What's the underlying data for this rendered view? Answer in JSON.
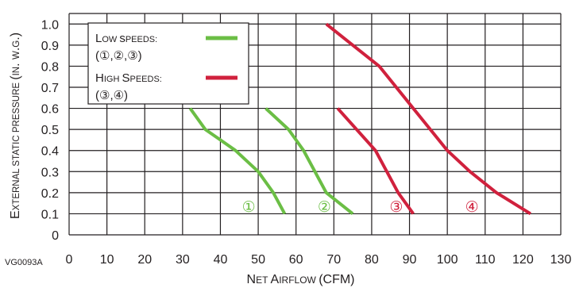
{
  "figure_code": "VG0093A",
  "colors": {
    "low": "#6bbe45",
    "high": "#d0213d",
    "grid": "#231f20"
  },
  "chart_data": {
    "type": "line",
    "xlabel": "Net Airflow (CFM)",
    "xlabel_parts": [
      {
        "t": "N",
        "big": true
      },
      {
        "t": "ET ",
        "big": false
      },
      {
        "t": "A",
        "big": true
      },
      {
        "t": "IRFLOW ",
        "big": false
      },
      {
        "t": "(CFM)",
        "big": true
      }
    ],
    "ylabel": "External static pressure (in. w.g.)",
    "ylabel_parts": [
      {
        "t": "E",
        "big": true
      },
      {
        "t": "XTERNAL STATIC PRESSURE ",
        "big": false
      },
      {
        "t": "(",
        "big": true
      },
      {
        "t": "IN",
        "big": false
      },
      {
        "t": ". ",
        "big": true
      },
      {
        "t": "W",
        "big": false
      },
      {
        "t": ".",
        "big": true
      },
      {
        "t": "G",
        "big": false
      },
      {
        "t": ".)",
        "big": true
      }
    ],
    "xlim": [
      0,
      130
    ],
    "ylim": [
      0,
      1.05
    ],
    "x_ticks": [
      "0",
      "10",
      "20",
      "30",
      "40",
      "50",
      "60",
      "70",
      "80",
      "90",
      "100",
      "110",
      "120",
      "130"
    ],
    "y_ticks": [
      "0",
      "0.1",
      "0.2",
      "0.3",
      "0.4",
      "0.5",
      "0.6",
      "0.7",
      "0.8",
      "0.9",
      "1.0"
    ],
    "grid": true,
    "legend": {
      "position": "top-left",
      "entries": [
        {
          "line1": "Low speeds:",
          "line2": "(①,②,③)",
          "color": "low"
        },
        {
          "line1": "High Speeds:",
          "line2": "(③,④)",
          "color": "high"
        }
      ]
    },
    "series": [
      {
        "label": "①",
        "group": "low",
        "x": [
          32,
          36,
          40,
          44,
          50,
          54,
          57
        ],
        "y": [
          0.6,
          0.5,
          0.45,
          0.4,
          0.3,
          0.2,
          0.1
        ]
      },
      {
        "label": "②",
        "group": "low",
        "x": [
          52,
          58,
          62,
          68,
          75
        ],
        "y": [
          0.6,
          0.5,
          0.4,
          0.2,
          0.1
        ]
      },
      {
        "label": "③",
        "group": "high",
        "x": [
          71,
          81,
          84,
          87,
          91
        ],
        "y": [
          0.6,
          0.4,
          0.3,
          0.2,
          0.1
        ]
      },
      {
        "label": "④",
        "group": "high",
        "x": [
          68,
          75,
          82,
          91,
          100,
          106,
          113,
          122
        ],
        "y": [
          1.0,
          0.9,
          0.8,
          0.6,
          0.4,
          0.3,
          0.2,
          0.1
        ]
      }
    ],
    "curve_label_positions": [
      {
        "label": "①",
        "group": "low",
        "x": 47.5,
        "y": 0.11
      },
      {
        "label": "②",
        "group": "low",
        "x": 67.5,
        "y": 0.11
      },
      {
        "label": "③",
        "group": "high",
        "x": 86.5,
        "y": 0.11
      },
      {
        "label": "④",
        "group": "high",
        "x": 106.5,
        "y": 0.11
      }
    ]
  }
}
